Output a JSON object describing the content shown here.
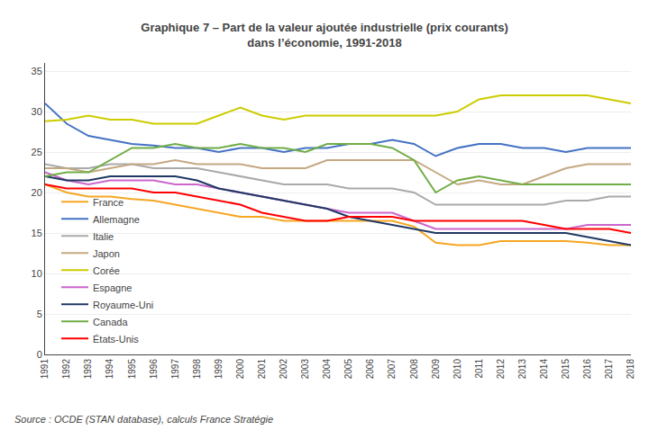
{
  "chart_data": {
    "type": "line",
    "title": "Graphique 7 – Part de la valeur ajoutée industrielle (prix courants)",
    "subtitle": "dans l’économie, 1991-2018",
    "annotations": [
      "Source : OCDE (STAN database), calculs France Stratégie"
    ],
    "x": [
      1991,
      1992,
      1993,
      1994,
      1995,
      1996,
      1997,
      1998,
      1999,
      2000,
      2001,
      2002,
      2003,
      2004,
      2005,
      2006,
      2007,
      2008,
      2009,
      2010,
      2011,
      2012,
      2013,
      2014,
      2015,
      2016,
      2017,
      2018
    ],
    "series": [
      {
        "name": "France",
        "color": "#F5A623",
        "values": [
          21.0,
          20.0,
          19.5,
          19.5,
          19.2,
          19.0,
          18.5,
          18.0,
          17.5,
          17.0,
          17.0,
          16.5,
          16.5,
          16.5,
          16.5,
          16.5,
          16.5,
          15.8,
          13.8,
          13.5,
          13.5,
          14.0,
          14.0,
          14.0,
          14.0,
          13.8,
          13.5,
          13.5
        ]
      },
      {
        "name": "Allemagne",
        "color": "#4472C4",
        "values": [
          31.0,
          28.5,
          27.0,
          26.5,
          26.0,
          25.8,
          25.5,
          25.5,
          25.0,
          25.5,
          25.5,
          25.0,
          25.5,
          25.5,
          26.0,
          26.0,
          26.5,
          26.0,
          24.5,
          25.5,
          26.0,
          26.0,
          25.5,
          25.5,
          25.0,
          25.5,
          25.5,
          25.5
        ]
      },
      {
        "name": "Italie",
        "color": "#A9A9A9",
        "values": [
          23.5,
          23.0,
          23.0,
          23.5,
          23.5,
          23.0,
          23.0,
          23.0,
          22.5,
          22.0,
          21.5,
          21.0,
          21.0,
          21.0,
          20.5,
          20.5,
          20.5,
          20.0,
          18.5,
          18.5,
          18.5,
          18.5,
          18.5,
          18.5,
          19.0,
          19.0,
          19.5,
          19.5
        ]
      },
      {
        "name": "Japon",
        "color": "#C4A882",
        "values": [
          23.0,
          23.0,
          22.5,
          23.0,
          23.5,
          23.5,
          24.0,
          23.5,
          23.5,
          23.5,
          23.0,
          23.0,
          23.0,
          24.0,
          24.0,
          24.0,
          24.0,
          24.0,
          22.5,
          21.0,
          21.5,
          21.0,
          21.0,
          22.0,
          23.0,
          23.5,
          23.5,
          23.5
        ]
      },
      {
        "name": "Corée",
        "color": "#CCCC00",
        "values": [
          28.8,
          29.0,
          29.5,
          29.0,
          29.0,
          28.5,
          28.5,
          28.5,
          29.5,
          30.5,
          29.5,
          29.0,
          29.5,
          29.5,
          29.5,
          29.5,
          29.5,
          29.5,
          29.5,
          30.0,
          31.5,
          32.0,
          32.0,
          32.0,
          32.0,
          32.0,
          31.5,
          31.0
        ]
      },
      {
        "name": "Espagne",
        "color": "#CC66CC",
        "values": [
          22.5,
          21.5,
          21.0,
          21.5,
          21.5,
          21.5,
          21.0,
          21.0,
          20.5,
          20.0,
          19.5,
          19.0,
          18.5,
          18.0,
          17.5,
          17.5,
          17.5,
          16.5,
          15.5,
          15.5,
          15.5,
          15.5,
          15.5,
          15.5,
          15.5,
          16.0,
          16.0,
          16.0
        ]
      },
      {
        "name": "Royaume-Uni",
        "color": "#1F3864",
        "values": [
          22.0,
          21.5,
          21.5,
          22.0,
          22.0,
          22.0,
          22.0,
          21.5,
          20.5,
          20.0,
          19.5,
          19.0,
          18.5,
          18.0,
          17.0,
          16.5,
          16.0,
          15.5,
          15.0,
          15.0,
          15.0,
          15.0,
          15.0,
          15.0,
          15.0,
          14.5,
          14.0,
          13.5
        ]
      },
      {
        "name": "Canada",
        "color": "#70AD47",
        "values": [
          22.0,
          22.5,
          22.5,
          24.0,
          25.5,
          25.5,
          26.0,
          25.5,
          25.5,
          26.0,
          25.5,
          25.5,
          25.0,
          26.0,
          26.0,
          26.0,
          25.5,
          24.0,
          20.0,
          21.5,
          22.0,
          21.5,
          21.0,
          21.0,
          21.0,
          21.0,
          21.0,
          21.0
        ]
      },
      {
        "name": "États-Unis",
        "color": "#FF0000",
        "values": [
          21.0,
          20.5,
          20.5,
          20.5,
          20.5,
          20.0,
          20.0,
          19.5,
          19.0,
          18.5,
          17.5,
          17.0,
          16.5,
          16.5,
          17.0,
          17.0,
          17.0,
          16.5,
          16.5,
          16.5,
          16.5,
          16.5,
          16.5,
          16.0,
          15.5,
          15.5,
          15.5,
          15.0
        ]
      }
    ],
    "xlim": [
      1991,
      2018
    ],
    "xticks": [
      1991,
      1992,
      1993,
      1994,
      1995,
      1996,
      1997,
      1998,
      1999,
      2000,
      2001,
      2002,
      2003,
      2004,
      2005,
      2006,
      2007,
      2008,
      2009,
      2010,
      2011,
      2012,
      2013,
      2014,
      2015,
      2016,
      2017,
      2018
    ],
    "ylim": [
      0,
      36
    ],
    "yticks": [
      0,
      5,
      10,
      15,
      20,
      25,
      30,
      35
    ],
    "grid": true,
    "legend": "lower left"
  }
}
